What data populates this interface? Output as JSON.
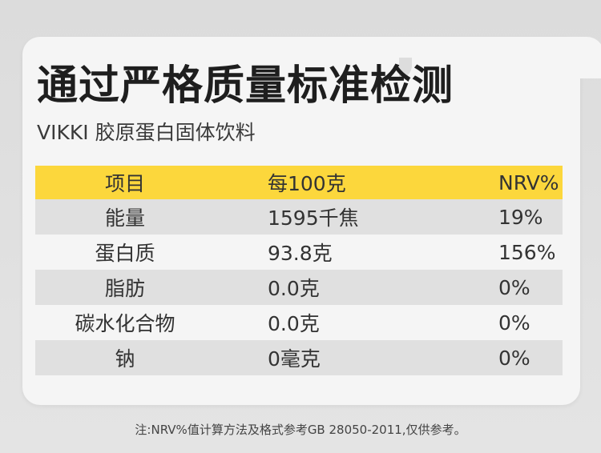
{
  "title": "通过严格质量标准检测",
  "subtitle": "VIKKI 胶原蛋白固体饮料",
  "table": {
    "headers": [
      "项目",
      "每100克",
      "NRV%"
    ],
    "rows": [
      [
        "能量",
        "1595千焦",
        "19%"
      ],
      [
        "蛋白质",
        "93.8克",
        "156%"
      ],
      [
        "脂肪",
        "0.0克",
        "0%"
      ],
      [
        "碳水化合物",
        "0.0克",
        "0%"
      ],
      [
        "钠",
        "0毫克",
        "0%"
      ]
    ]
  },
  "footnote": "注:NRV%值计算方法及格式参考GB 28050-2011,仅供参考。",
  "colors": {
    "header_bg": "#fcd73c",
    "stripe_bg": "#e0e0e0",
    "card_bg": "#f5f5f5",
    "page_bg": "#dcdcdc"
  }
}
